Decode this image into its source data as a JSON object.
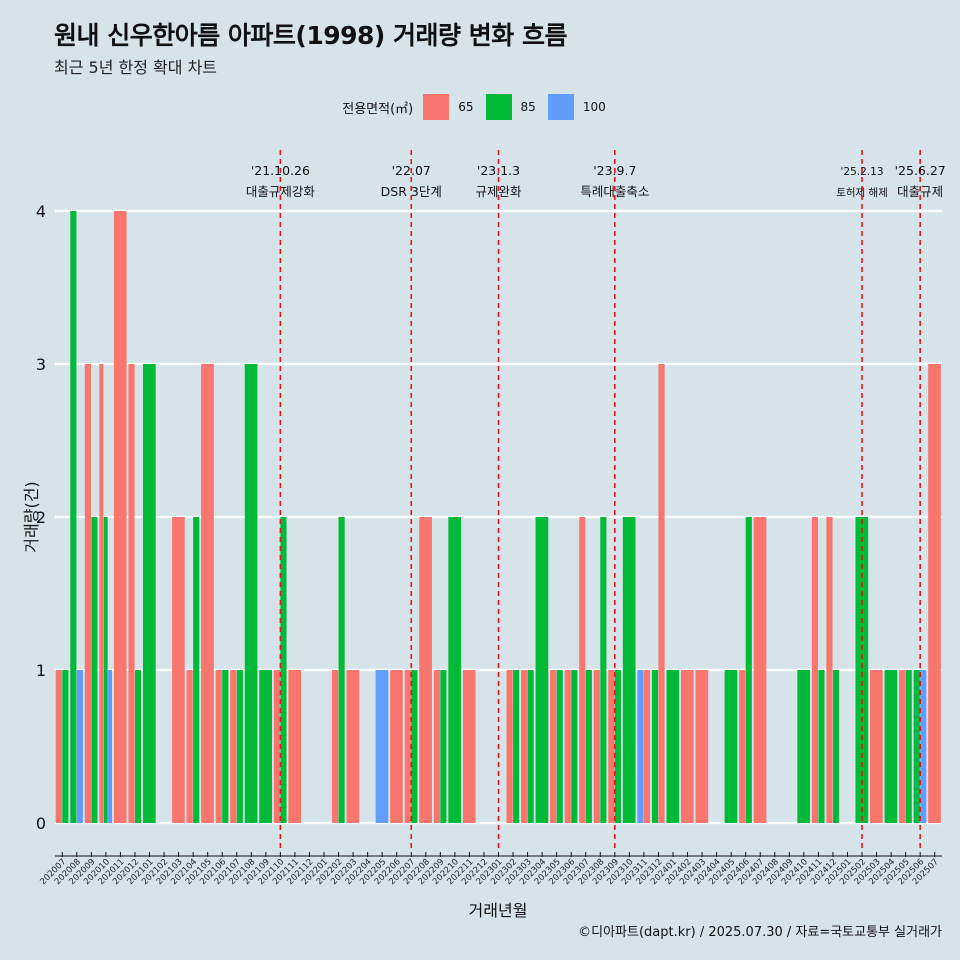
{
  "title": "원내 신우한아름 아파트(1998) 거래량 변화 흐름",
  "subtitle": "최근 5년 한정 확대 차트",
  "caption": "©디아파트(dapt.kr) / 2025.07.30 / 자료=국토교통부 실거래가",
  "legend": {
    "title": "전용면적(㎡)",
    "items": [
      {
        "label": "65",
        "color": "#F8766D"
      },
      {
        "label": "85",
        "color": "#00BA38"
      },
      {
        "label": "100",
        "color": "#619CFF"
      }
    ]
  },
  "chart_data": {
    "type": "bar",
    "xlabel": "거래년월",
    "ylabel": "거래량(건)",
    "ylim": [
      0,
      4
    ],
    "yticks": [
      0,
      1,
      2,
      3,
      4
    ],
    "grid": true,
    "legend_position": "top",
    "colors": {
      "65": "#F8766D",
      "85": "#00BA38",
      "100": "#619CFF"
    },
    "categories": [
      "202007",
      "202008",
      "202009",
      "202010",
      "202011",
      "202012",
      "202101",
      "202102",
      "202103",
      "202104",
      "202105",
      "202106",
      "202107",
      "202108",
      "202109",
      "202110",
      "202111",
      "202112",
      "202201",
      "202202",
      "202203",
      "202204",
      "202205",
      "202206",
      "202207",
      "202208",
      "202209",
      "202210",
      "202211",
      "202212",
      "202301",
      "202302",
      "202303",
      "202304",
      "202305",
      "202306",
      "202307",
      "202308",
      "202309",
      "202310",
      "202311",
      "202312",
      "202401",
      "202402",
      "202403",
      "202404",
      "202405",
      "202406",
      "202407",
      "202408",
      "202409",
      "202410",
      "202411",
      "202412",
      "202501",
      "202502",
      "202503",
      "202504",
      "202505",
      "202506",
      "202507"
    ],
    "bars": [
      {
        "month": "202007",
        "groups": [
          {
            "area": "65",
            "value": 1
          },
          {
            "area": "85",
            "value": 1
          }
        ]
      },
      {
        "month": "202008",
        "groups": [
          {
            "area": "85",
            "value": 4
          },
          {
            "area": "100",
            "value": 1
          }
        ]
      },
      {
        "month": "202009",
        "groups": [
          {
            "area": "65",
            "value": 3
          },
          {
            "area": "85",
            "value": 2
          }
        ]
      },
      {
        "month": "202010",
        "groups": [
          {
            "area": "65",
            "value": 3
          },
          {
            "area": "85",
            "value": 2
          },
          {
            "area": "100",
            "value": 1
          }
        ]
      },
      {
        "month": "202011",
        "groups": [
          {
            "area": "65",
            "value": 4
          }
        ]
      },
      {
        "month": "202012",
        "groups": [
          {
            "area": "65",
            "value": 3
          },
          {
            "area": "85",
            "value": 1
          }
        ]
      },
      {
        "month": "202101",
        "groups": [
          {
            "area": "85",
            "value": 3
          }
        ]
      },
      {
        "month": "202102",
        "groups": []
      },
      {
        "month": "202103",
        "groups": [
          {
            "area": "65",
            "value": 2
          }
        ]
      },
      {
        "month": "202104",
        "groups": [
          {
            "area": "65",
            "value": 1
          },
          {
            "area": "85",
            "value": 2
          }
        ]
      },
      {
        "month": "202105",
        "groups": [
          {
            "area": "65",
            "value": 3
          }
        ]
      },
      {
        "month": "202106",
        "groups": [
          {
            "area": "65",
            "value": 1
          },
          {
            "area": "85",
            "value": 1
          }
        ]
      },
      {
        "month": "202107",
        "groups": [
          {
            "area": "65",
            "value": 1
          },
          {
            "area": "85",
            "value": 1
          }
        ]
      },
      {
        "month": "202108",
        "groups": [
          {
            "area": "85",
            "value": 3
          }
        ]
      },
      {
        "month": "202109",
        "groups": [
          {
            "area": "85",
            "value": 1
          }
        ]
      },
      {
        "month": "202110",
        "groups": [
          {
            "area": "65",
            "value": 1
          },
          {
            "area": "85",
            "value": 2
          }
        ]
      },
      {
        "month": "202111",
        "groups": [
          {
            "area": "65",
            "value": 1
          }
        ]
      },
      {
        "month": "202112",
        "groups": []
      },
      {
        "month": "202201",
        "groups": []
      },
      {
        "month": "202202",
        "groups": [
          {
            "area": "65",
            "value": 1
          },
          {
            "area": "85",
            "value": 2
          }
        ]
      },
      {
        "month": "202203",
        "groups": [
          {
            "area": "65",
            "value": 1
          }
        ]
      },
      {
        "month": "202204",
        "groups": []
      },
      {
        "month": "202205",
        "groups": [
          {
            "area": "100",
            "value": 1
          }
        ]
      },
      {
        "month": "202206",
        "groups": [
          {
            "area": "65",
            "value": 1
          }
        ]
      },
      {
        "month": "202207",
        "groups": [
          {
            "area": "65",
            "value": 1
          },
          {
            "area": "85",
            "value": 1
          }
        ]
      },
      {
        "month": "202208",
        "groups": [
          {
            "area": "65",
            "value": 2
          }
        ]
      },
      {
        "month": "202209",
        "groups": [
          {
            "area": "65",
            "value": 1
          },
          {
            "area": "85",
            "value": 1
          }
        ]
      },
      {
        "month": "202210",
        "groups": [
          {
            "area": "85",
            "value": 2
          }
        ]
      },
      {
        "month": "202211",
        "groups": [
          {
            "area": "65",
            "value": 1
          }
        ]
      },
      {
        "month": "202212",
        "groups": []
      },
      {
        "month": "202301",
        "groups": []
      },
      {
        "month": "202302",
        "groups": [
          {
            "area": "65",
            "value": 1
          },
          {
            "area": "85",
            "value": 1
          }
        ]
      },
      {
        "month": "202303",
        "groups": [
          {
            "area": "65",
            "value": 1
          },
          {
            "area": "85",
            "value": 1
          }
        ]
      },
      {
        "month": "202304",
        "groups": [
          {
            "area": "85",
            "value": 2
          }
        ]
      },
      {
        "month": "202305",
        "groups": [
          {
            "area": "65",
            "value": 1
          },
          {
            "area": "85",
            "value": 1
          }
        ]
      },
      {
        "month": "202306",
        "groups": [
          {
            "area": "65",
            "value": 1
          },
          {
            "area": "85",
            "value": 1
          }
        ]
      },
      {
        "month": "202307",
        "groups": [
          {
            "area": "65",
            "value": 2
          },
          {
            "area": "85",
            "value": 1
          }
        ]
      },
      {
        "month": "202308",
        "groups": [
          {
            "area": "65",
            "value": 1
          },
          {
            "area": "85",
            "value": 2
          }
        ]
      },
      {
        "month": "202309",
        "groups": [
          {
            "area": "65",
            "value": 1
          },
          {
            "area": "85",
            "value": 1
          }
        ]
      },
      {
        "month": "202310",
        "groups": [
          {
            "area": "85",
            "value": 2
          }
        ]
      },
      {
        "month": "202311",
        "groups": [
          {
            "area": "100",
            "value": 1
          },
          {
            "area": "65",
            "value": 1
          }
        ]
      },
      {
        "month": "202312",
        "groups": [
          {
            "area": "85",
            "value": 1
          },
          {
            "area": "65",
            "value": 3
          }
        ]
      },
      {
        "month": "202401",
        "groups": [
          {
            "area": "85",
            "value": 1
          }
        ]
      },
      {
        "month": "202402",
        "groups": [
          {
            "area": "65",
            "value": 1
          }
        ]
      },
      {
        "month": "202403",
        "groups": [
          {
            "area": "65",
            "value": 1
          }
        ]
      },
      {
        "month": "202404",
        "groups": []
      },
      {
        "month": "202405",
        "groups": [
          {
            "area": "85",
            "value": 1
          }
        ]
      },
      {
        "month": "202406",
        "groups": [
          {
            "area": "65",
            "value": 1
          },
          {
            "area": "85",
            "value": 2
          }
        ]
      },
      {
        "month": "202407",
        "groups": [
          {
            "area": "65",
            "value": 2
          }
        ]
      },
      {
        "month": "202408",
        "groups": []
      },
      {
        "month": "202409",
        "groups": []
      },
      {
        "month": "202410",
        "groups": [
          {
            "area": "85",
            "value": 1
          }
        ]
      },
      {
        "month": "202411",
        "groups": [
          {
            "area": "65",
            "value": 2
          },
          {
            "area": "85",
            "value": 1
          }
        ]
      },
      {
        "month": "202412",
        "groups": [
          {
            "area": "65",
            "value": 2
          },
          {
            "area": "85",
            "value": 1
          }
        ]
      },
      {
        "month": "202501",
        "groups": []
      },
      {
        "month": "202502",
        "groups": [
          {
            "area": "85",
            "value": 2
          }
        ]
      },
      {
        "month": "202503",
        "groups": [
          {
            "area": "65",
            "value": 1
          }
        ]
      },
      {
        "month": "202504",
        "groups": [
          {
            "area": "85",
            "value": 1
          }
        ]
      },
      {
        "month": "202505",
        "groups": [
          {
            "area": "65",
            "value": 1
          },
          {
            "area": "85",
            "value": 1
          }
        ]
      },
      {
        "month": "202506",
        "groups": [
          {
            "area": "85",
            "value": 1
          },
          {
            "area": "100",
            "value": 1
          }
        ]
      },
      {
        "month": "202507",
        "groups": [
          {
            "area": "65",
            "value": 3
          }
        ]
      }
    ],
    "events": [
      {
        "month": "202110",
        "date": "'21.10.26",
        "label": "대출규제강화"
      },
      {
        "month": "202207",
        "date": "'22.07",
        "label": "DSR 3단계"
      },
      {
        "month": "202301",
        "date": "'23.1.3",
        "label": "규제완화"
      },
      {
        "month": "202309",
        "date": "'23.9.7",
        "label": "특례대출축소"
      },
      {
        "month": "202502",
        "date": "'25.2.13",
        "label": "토허제 해제"
      },
      {
        "month": "202506",
        "date": "'25.6.27",
        "label": "대출규제"
      }
    ]
  }
}
